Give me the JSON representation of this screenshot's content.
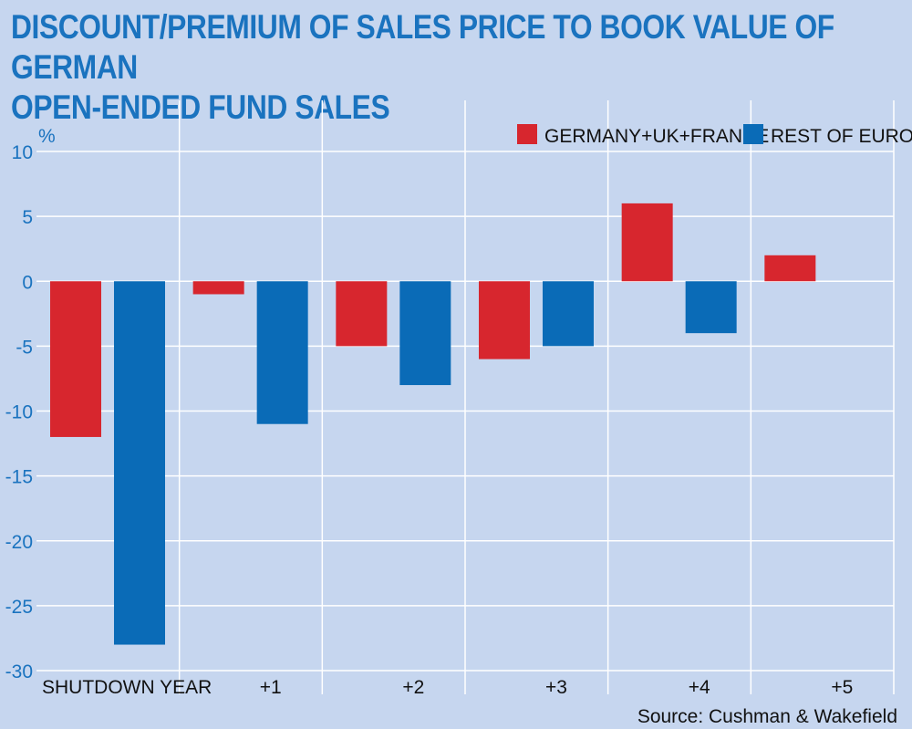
{
  "title_lines": [
    "DISCOUNT/PREMIUM OF SALES PRICE TO BOOK VALUE OF GERMAN",
    "OPEN-ENDED FUND SALES"
  ],
  "source": "Source: Cushman & Wakefield",
  "colors": {
    "background": "#c6d6ef",
    "title": "#1a73bf",
    "grid": "#ffffff",
    "series_1": "#d7262e",
    "series_2": "#0a6bb7"
  },
  "chart_data": {
    "type": "bar",
    "title": "DISCOUNT/PREMIUM OF SALES PRICE TO BOOK VALUE OF GERMAN OPEN-ENDED FUND SALES",
    "ylabel": "%",
    "xlabel": "",
    "ylim": [
      -30,
      10
    ],
    "yticks": [
      10,
      5,
      0,
      -5,
      -10,
      -15,
      -20,
      -25,
      -30
    ],
    "categories": [
      "SHUTDOWN YEAR",
      "+1",
      "+2",
      "+3",
      "+4",
      "+5"
    ],
    "series": [
      {
        "name": "GERMANY+UK+FRANCE",
        "values": [
          -12,
          -1,
          -5,
          -6,
          6,
          2
        ]
      },
      {
        "name": "REST OF EUROPE",
        "values": [
          -28,
          -11,
          -8,
          -5,
          -4,
          null
        ]
      }
    ],
    "grid": true,
    "legend_position": "top-right"
  }
}
